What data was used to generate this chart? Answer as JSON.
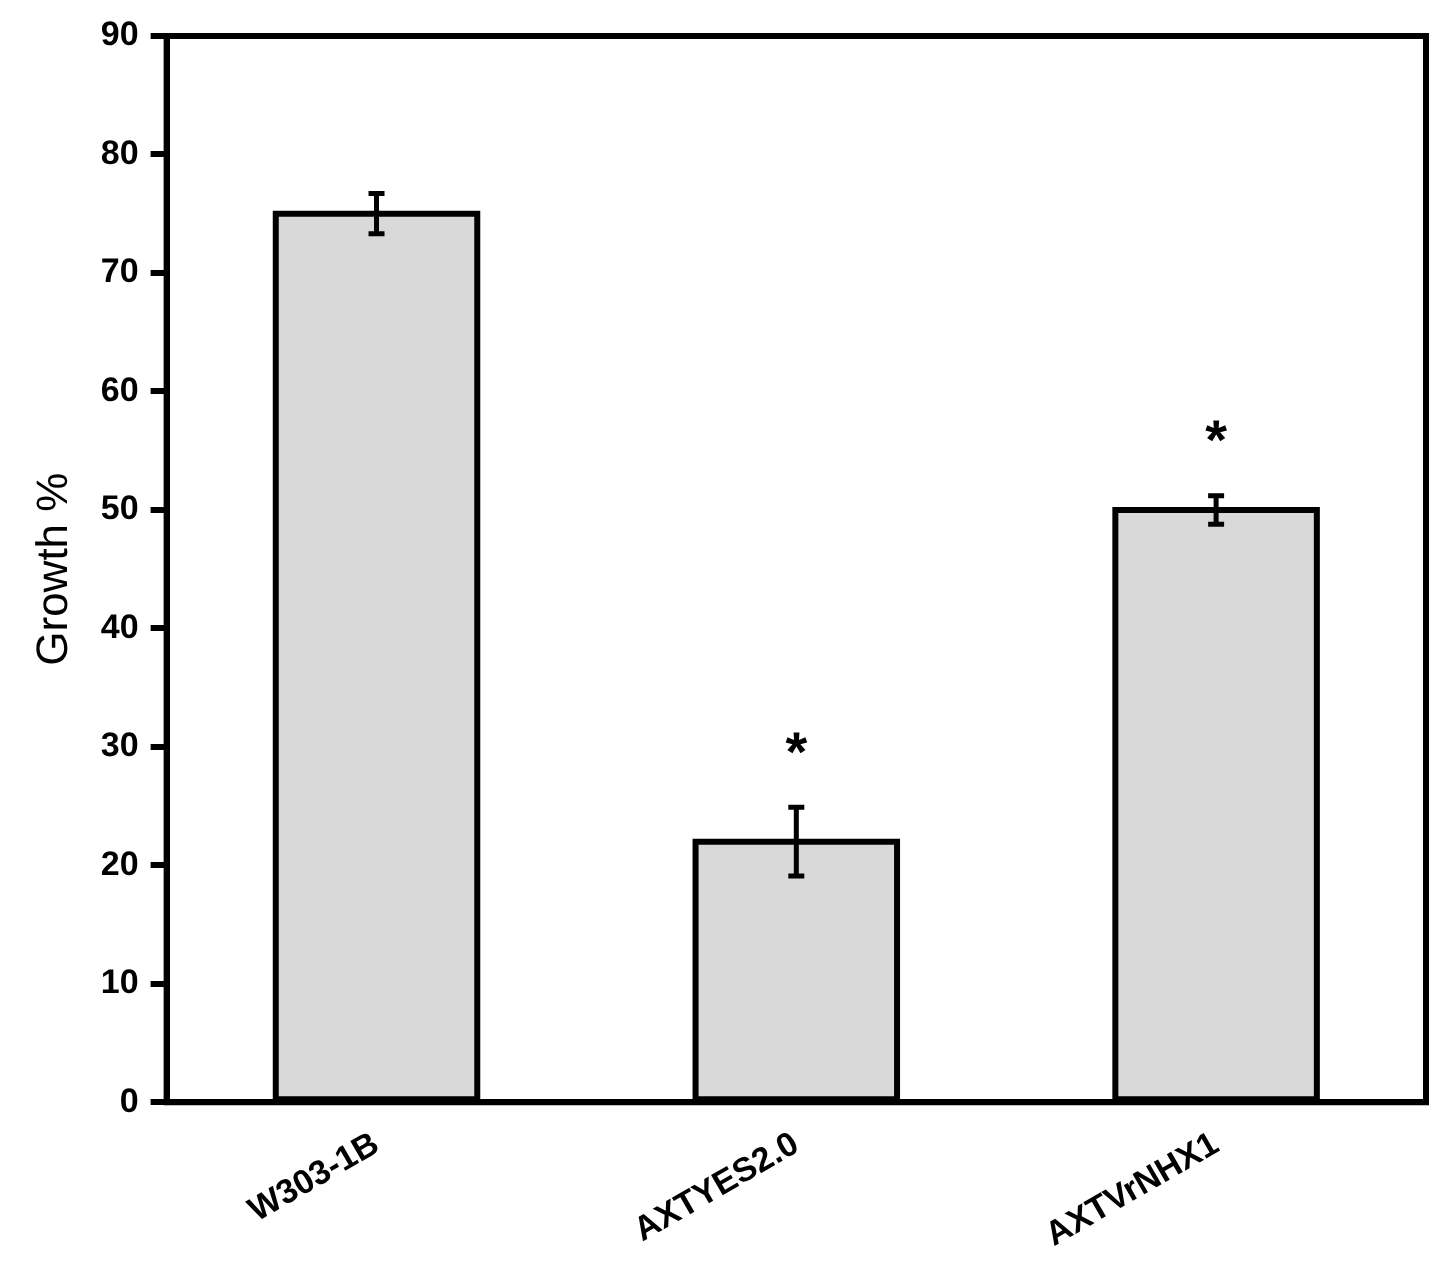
{
  "chart_data": {
    "type": "bar",
    "ylabel": "Growth %",
    "categories": [
      "W303-1B",
      "AXTYES2.0",
      "AXTVrNHX1"
    ],
    "values": [
      75,
      22,
      50
    ],
    "errors": [
      1.7,
      2.9,
      1.2
    ],
    "color": "#d9d9d9",
    "ylim": [
      0,
      90
    ],
    "yticks": [
      0,
      10,
      20,
      30,
      40,
      50,
      60,
      70,
      80,
      90
    ],
    "grid": false,
    "annotations": [
      {
        "text": "*",
        "x": "AXTYES2.0",
        "y": 22
      },
      {
        "text": "*",
        "x": "AXTVrNHX1",
        "y": 50
      }
    ]
  }
}
